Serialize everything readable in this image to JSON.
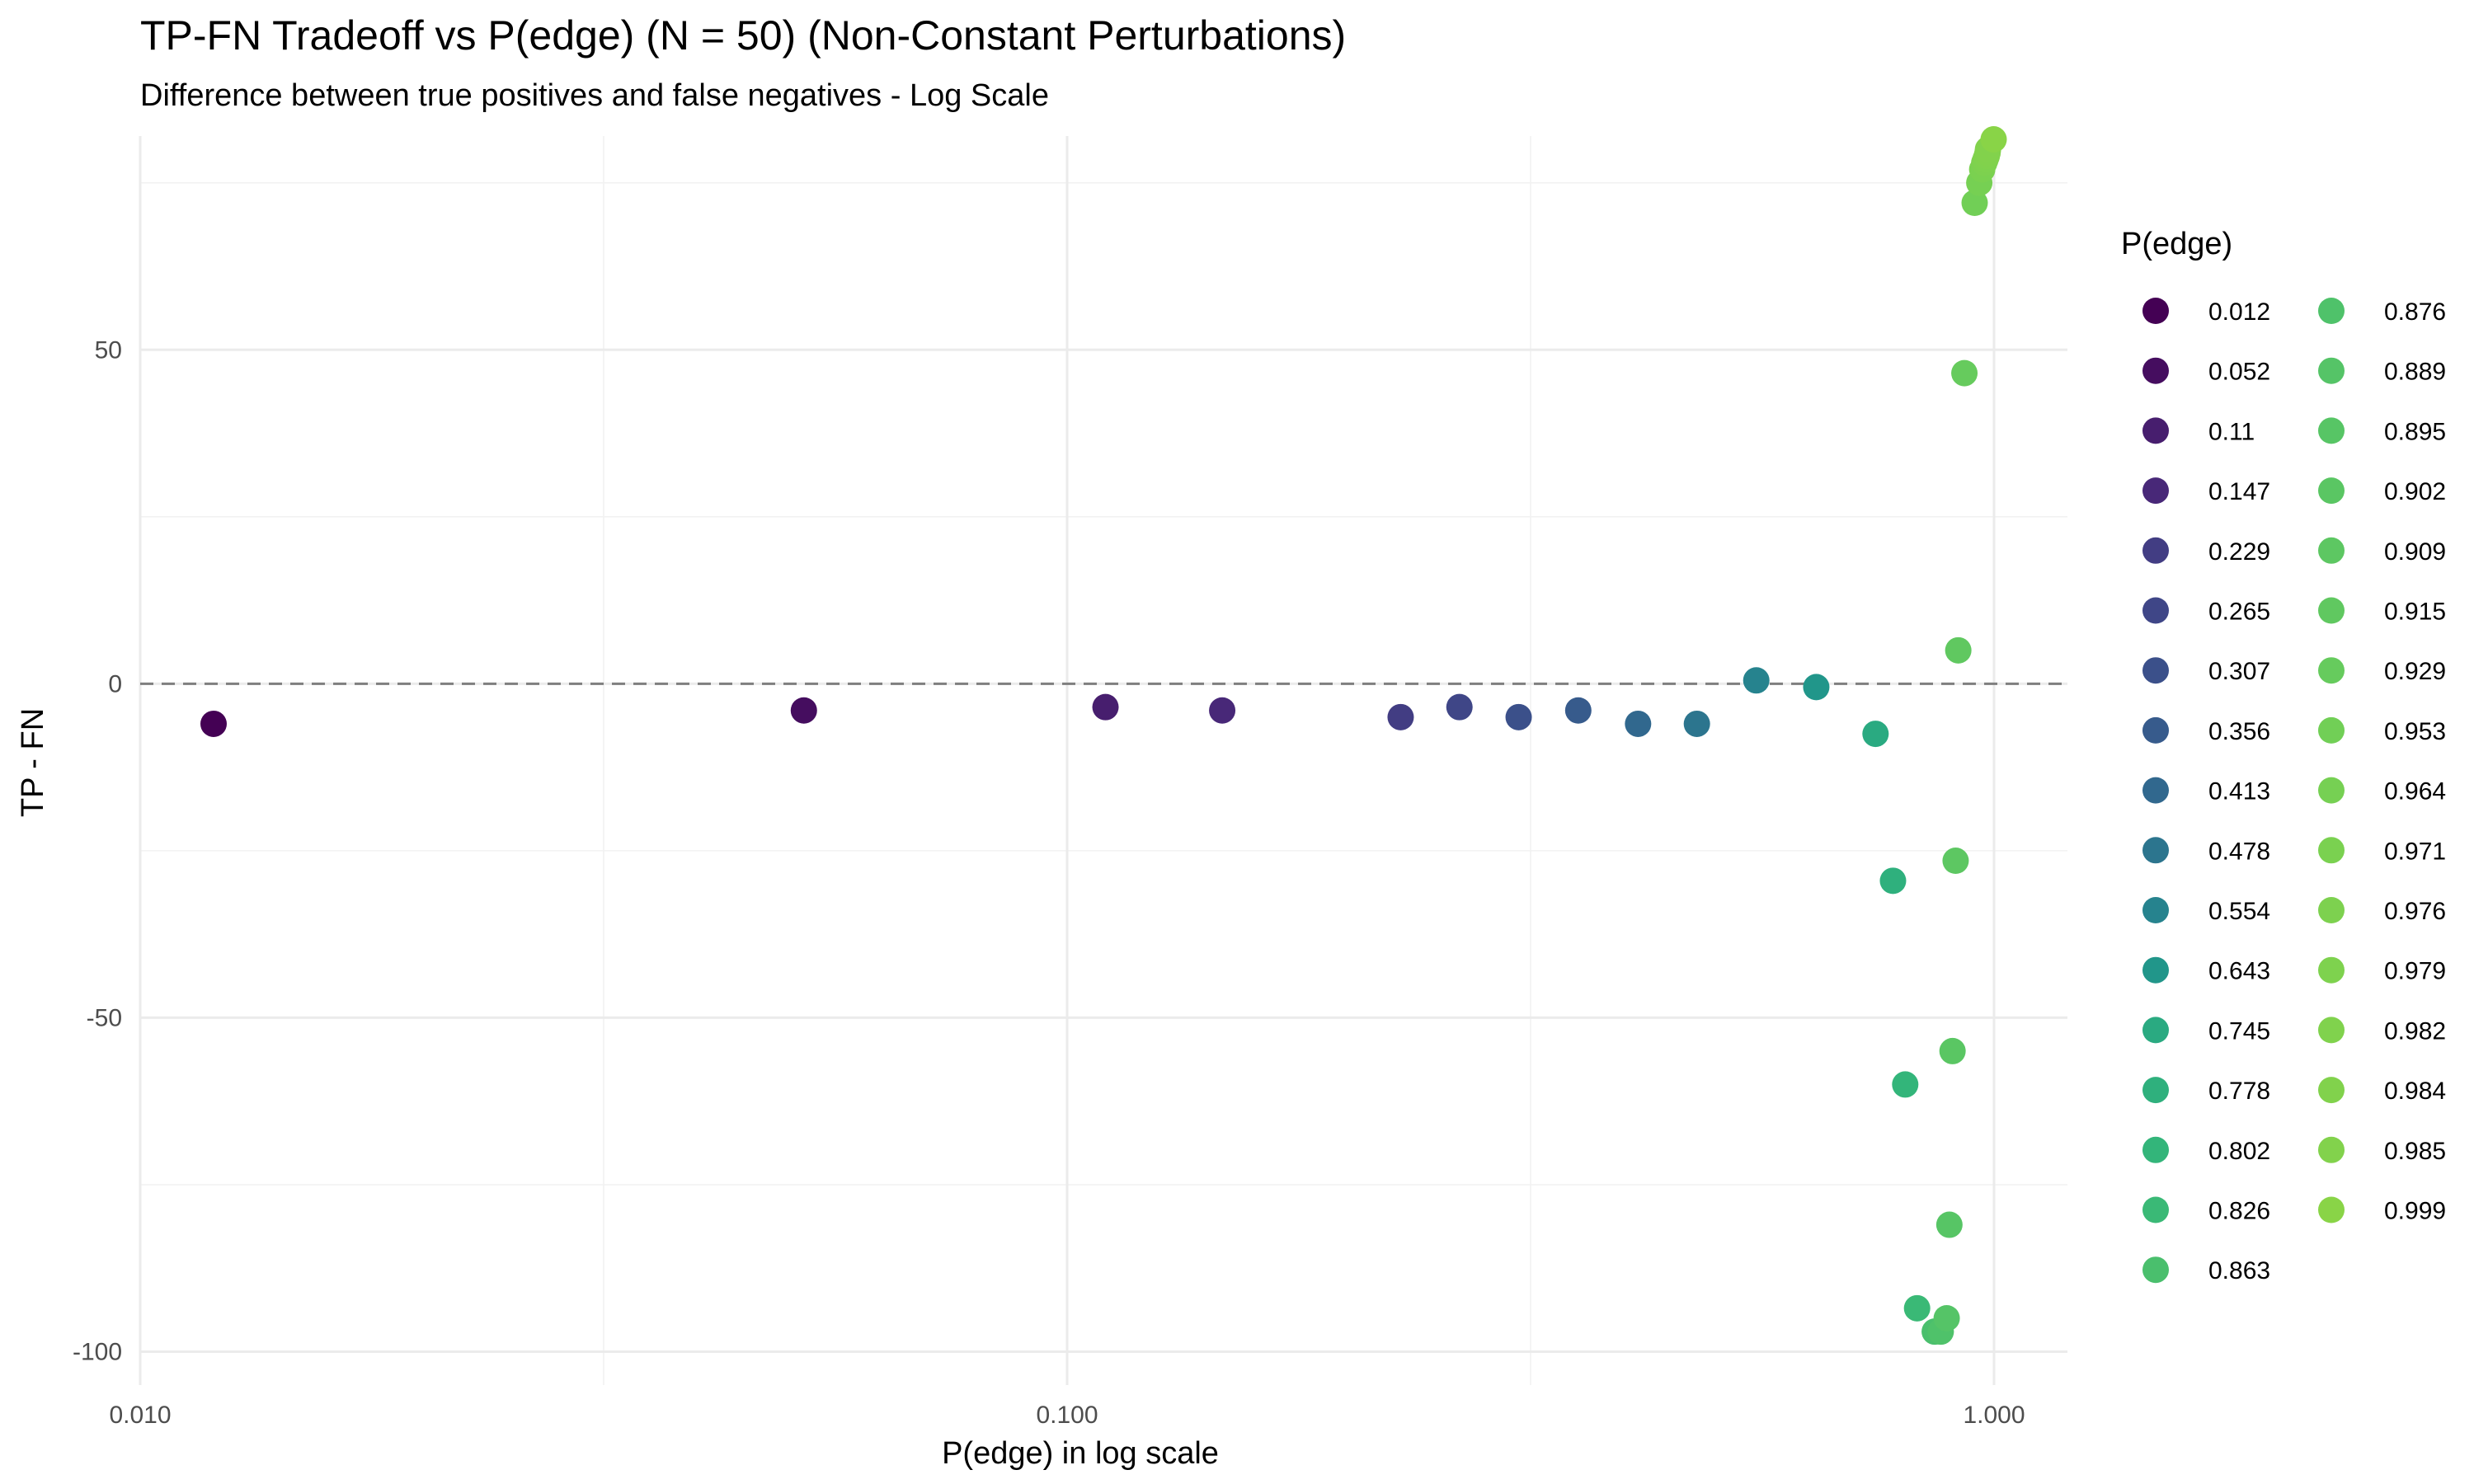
{
  "chart_data": {
    "type": "scatter",
    "title": "TP-FN Tradeoff vs P(edge) (N = 50) (Non-Constant Perturbations)",
    "subtitle": "Difference between true positives and false negatives - Log Scale",
    "xlabel": "P(edge) in log scale",
    "ylabel": "TP - FN",
    "x_scale": "log10",
    "xlim": [
      0.01,
      1.2
    ],
    "ylim": [
      -105,
      82
    ],
    "x_ticks": [
      0.01,
      0.1,
      1.0
    ],
    "x_tick_labels": [
      "0.010",
      "0.100",
      "1.000"
    ],
    "y_ticks": [
      -100,
      -50,
      0,
      50
    ],
    "y_tick_labels": [
      "-100",
      "-50",
      "0",
      "50"
    ],
    "reference_line": {
      "y": 0,
      "style": "dashed"
    },
    "grid": true,
    "color_scale": "viridis",
    "legend_title": "P(edge)",
    "legend_position": "right",
    "legend_columns": 2,
    "legend_labels": [
      "0.012",
      "0.052",
      "0.11",
      "0.147",
      "0.229",
      "0.265",
      "0.307",
      "0.356",
      "0.413",
      "0.478",
      "0.554",
      "0.643",
      "0.745",
      "0.778",
      "0.802",
      "0.826",
      "0.863",
      "0.876",
      "0.889",
      "0.895",
      "0.902",
      "0.909",
      "0.915",
      "0.929",
      "0.953",
      "0.964",
      "0.971",
      "0.976",
      "0.979",
      "0.982",
      "0.984",
      "0.985",
      "0.999"
    ],
    "points": [
      {
        "x": 0.012,
        "y": -6
      },
      {
        "x": 0.052,
        "y": -4
      },
      {
        "x": 0.11,
        "y": -3.5
      },
      {
        "x": 0.147,
        "y": -4
      },
      {
        "x": 0.229,
        "y": -5
      },
      {
        "x": 0.265,
        "y": -3.5
      },
      {
        "x": 0.307,
        "y": -5
      },
      {
        "x": 0.356,
        "y": -4
      },
      {
        "x": 0.413,
        "y": -6
      },
      {
        "x": 0.478,
        "y": -6
      },
      {
        "x": 0.554,
        "y": 0.5
      },
      {
        "x": 0.643,
        "y": -0.5
      },
      {
        "x": 0.745,
        "y": -7.5
      },
      {
        "x": 0.778,
        "y": -29.5
      },
      {
        "x": 0.802,
        "y": -60
      },
      {
        "x": 0.826,
        "y": -93.5
      },
      {
        "x": 0.863,
        "y": -97
      },
      {
        "x": 0.876,
        "y": -97
      },
      {
        "x": 0.889,
        "y": -95
      },
      {
        "x": 0.895,
        "y": -81
      },
      {
        "x": 0.902,
        "y": -55
      },
      {
        "x": 0.909,
        "y": -26.5
      },
      {
        "x": 0.915,
        "y": 5
      },
      {
        "x": 0.929,
        "y": 46.5
      },
      {
        "x": 0.953,
        "y": 72
      },
      {
        "x": 0.964,
        "y": 75
      },
      {
        "x": 0.971,
        "y": 77
      },
      {
        "x": 0.976,
        "y": 78
      },
      {
        "x": 0.979,
        "y": 78.5
      },
      {
        "x": 0.982,
        "y": 79
      },
      {
        "x": 0.984,
        "y": 79.5
      },
      {
        "x": 0.985,
        "y": 80
      },
      {
        "x": 0.999,
        "y": 81.5
      }
    ]
  }
}
